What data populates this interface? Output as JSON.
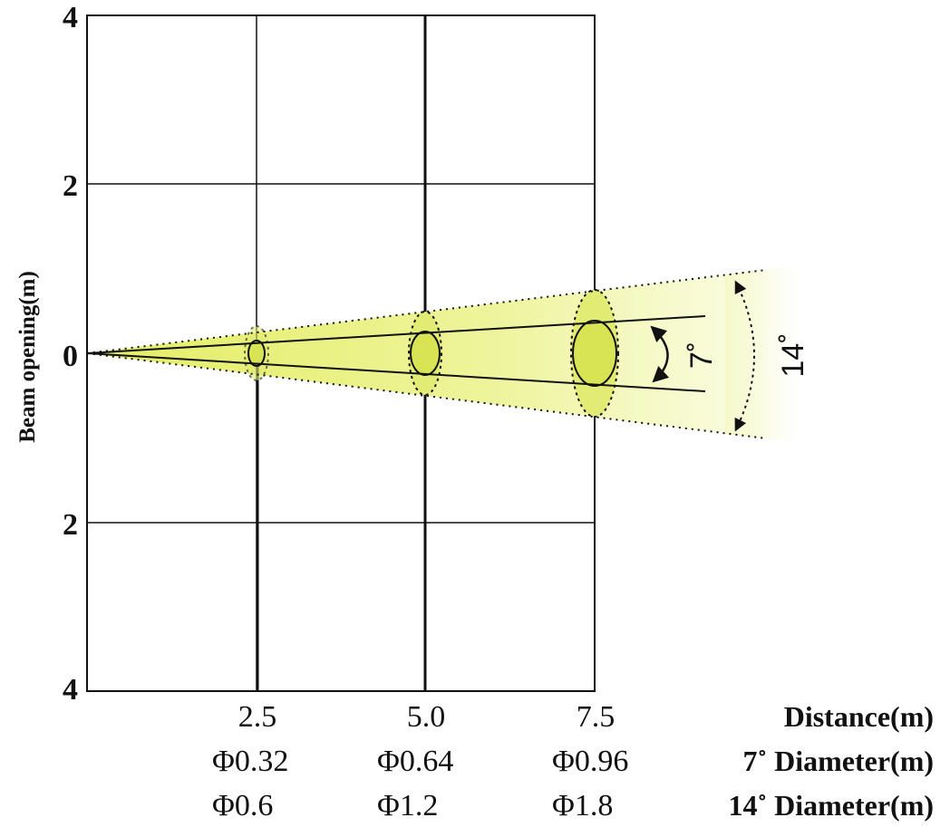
{
  "chart_data": {
    "type": "beam-diagram",
    "ylabel": "Beam opening(m)",
    "y_ticks": [
      "4",
      "2",
      "0",
      "2",
      "4"
    ],
    "x_ticks": [
      "2.5",
      "5.0",
      "7.5"
    ],
    "x_label": "Distance(m)",
    "rows": [
      {
        "label": "7˚ Diameter(m)",
        "values": [
          "Φ0.32",
          "Φ0.64",
          "Φ0.96"
        ]
      },
      {
        "label": "14˚ Diameter(m)",
        "values": [
          "Φ0.6",
          "Φ1.2",
          "Φ1.8"
        ]
      }
    ],
    "angles": {
      "inner": "7˚",
      "outer": "14˚"
    },
    "colors": {
      "beam_fill": "#eef29a",
      "spot_fill": "#d8e454",
      "outer_spot_fill": "#e2eb73",
      "line": "#111111"
    }
  }
}
